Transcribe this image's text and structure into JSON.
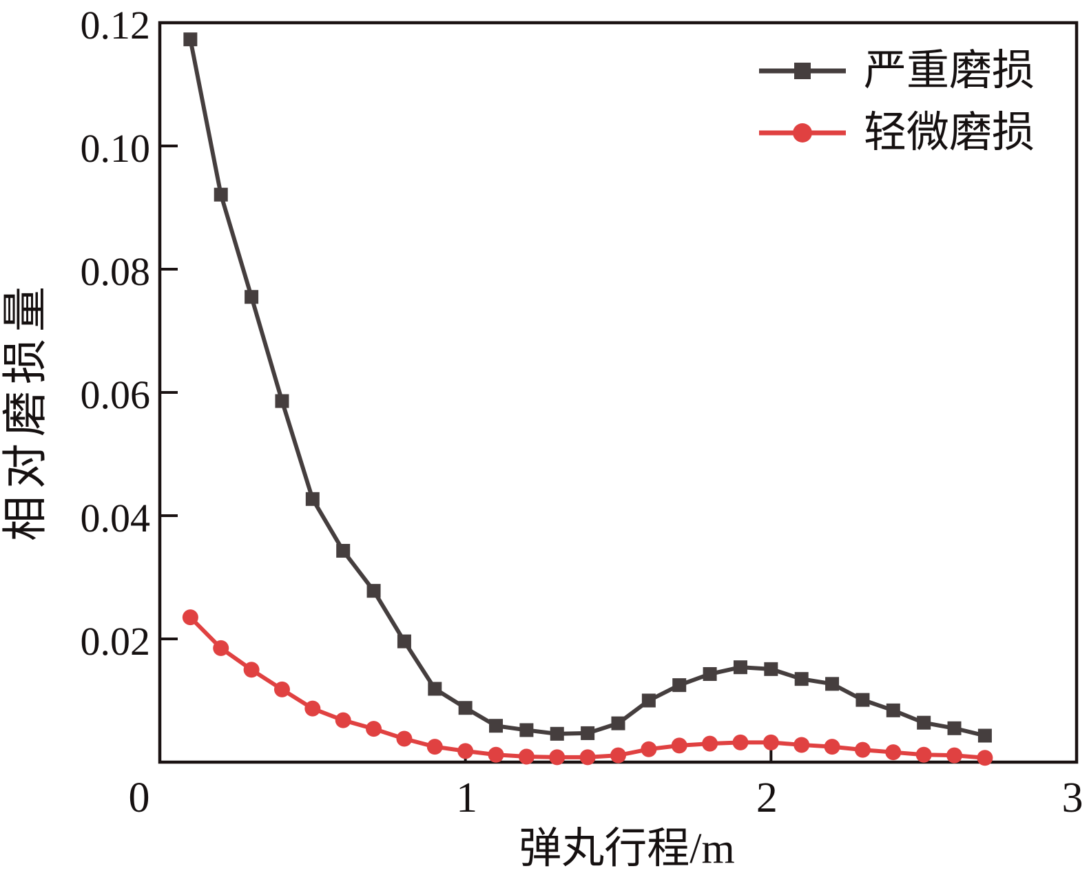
{
  "chart_data": {
    "type": "line",
    "title": "",
    "xlabel": "弹丸行程/m",
    "ylabel": "相对磨损量",
    "xlim": [
      0,
      3
    ],
    "ylim": [
      0,
      0.12
    ],
    "x_ticks": [
      0,
      1,
      2,
      3
    ],
    "x_tick_labels": [
      "0",
      "1",
      "2",
      "3"
    ],
    "y_ticks": [
      0.02,
      0.04,
      0.06,
      0.08,
      0.1,
      0.12
    ],
    "y_tick_labels": [
      "0.02",
      "0.04",
      "0.06",
      "0.08",
      "0.10",
      "0.12"
    ],
    "grid": false,
    "legend_position": "inside-top-right",
    "frame_color": "#1a1212",
    "x": [
      0.1,
      0.2,
      0.3,
      0.4,
      0.5,
      0.6,
      0.7,
      0.8,
      0.9,
      1.0,
      1.1,
      1.2,
      1.3,
      1.4,
      1.5,
      1.6,
      1.7,
      1.8,
      1.9,
      2.0,
      2.1,
      2.2,
      2.3,
      2.4,
      2.5,
      2.6,
      2.7
    ],
    "series": [
      {
        "name": "严重磨损",
        "color": "#453e3e",
        "marker": "square",
        "values": [
          0.1173,
          0.0921,
          0.0755,
          0.0586,
          0.0427,
          0.0343,
          0.0278,
          0.0196,
          0.0119,
          0.0088,
          0.0059,
          0.0052,
          0.0046,
          0.0047,
          0.0063,
          0.01,
          0.0125,
          0.0143,
          0.0154,
          0.0151,
          0.0135,
          0.0127,
          0.0101,
          0.0084,
          0.0064,
          0.0055,
          0.0043
        ]
      },
      {
        "name": "轻微磨损",
        "color": "#e04141",
        "marker": "circle",
        "values": [
          0.0235,
          0.0185,
          0.015,
          0.0118,
          0.0087,
          0.0068,
          0.0054,
          0.0038,
          0.0025,
          0.0018,
          0.0012,
          0.0009,
          0.0008,
          0.0008,
          0.0011,
          0.0021,
          0.0027,
          0.003,
          0.0032,
          0.0032,
          0.0028,
          0.0025,
          0.002,
          0.0016,
          0.0012,
          0.0011,
          0.0007
        ]
      }
    ]
  }
}
